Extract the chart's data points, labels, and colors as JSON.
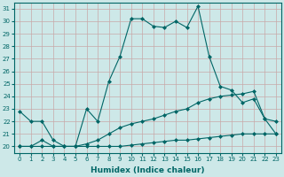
{
  "xlabel": "Humidex (Indice chaleur)",
  "ylabel": "",
  "bg_color": "#cde8e8",
  "line_color": "#006666",
  "grid_color": "#b8d8d8",
  "xlim": [
    -0.5,
    23.5
  ],
  "ylim": [
    19.5,
    31.5
  ],
  "xticks": [
    0,
    1,
    2,
    3,
    4,
    5,
    6,
    7,
    8,
    9,
    10,
    11,
    12,
    13,
    14,
    15,
    16,
    17,
    18,
    19,
    20,
    21,
    22,
    23
  ],
  "yticks": [
    20,
    21,
    22,
    23,
    24,
    25,
    26,
    27,
    28,
    29,
    30,
    31
  ],
  "series1_x": [
    0,
    1,
    2,
    3,
    4,
    5,
    6,
    7,
    8,
    9,
    10,
    11,
    12,
    13,
    14,
    15,
    16,
    17,
    18,
    19,
    20,
    21,
    22,
    23
  ],
  "series1_y": [
    22.8,
    22.0,
    22.0,
    20.5,
    20.0,
    20.0,
    23.0,
    22.0,
    25.2,
    27.2,
    30.2,
    30.2,
    29.6,
    29.5,
    30.0,
    29.5,
    31.2,
    27.2,
    24.8,
    24.5,
    23.5,
    23.8,
    22.2,
    21.0
  ],
  "series2_x": [
    0,
    1,
    2,
    3,
    4,
    5,
    6,
    7,
    8,
    9,
    10,
    11,
    12,
    13,
    14,
    15,
    16,
    17,
    18,
    19,
    20,
    21,
    22,
    23
  ],
  "series2_y": [
    20.0,
    20.0,
    20.0,
    20.0,
    20.0,
    20.0,
    20.2,
    20.5,
    21.0,
    21.5,
    21.8,
    22.0,
    22.2,
    22.5,
    22.8,
    23.0,
    23.5,
    23.8,
    24.0,
    24.1,
    24.2,
    24.4,
    22.2,
    22.0
  ],
  "series3_x": [
    0,
    1,
    2,
    3,
    4,
    5,
    6,
    7,
    8,
    9,
    10,
    11,
    12,
    13,
    14,
    15,
    16,
    17,
    18,
    19,
    20,
    21,
    22,
    23
  ],
  "series3_y": [
    20.0,
    20.0,
    20.5,
    20.0,
    20.0,
    20.0,
    20.0,
    20.0,
    20.0,
    20.0,
    20.1,
    20.2,
    20.3,
    20.4,
    20.5,
    20.5,
    20.6,
    20.7,
    20.8,
    20.9,
    21.0,
    21.0,
    21.0,
    21.0
  ],
  "marker": "D",
  "markersize": 2.0,
  "linewidth": 0.8,
  "tick_fontsize": 5.0,
  "label_fontsize": 6.5,
  "fig_width": 3.2,
  "fig_height": 2.0,
  "dpi": 100
}
